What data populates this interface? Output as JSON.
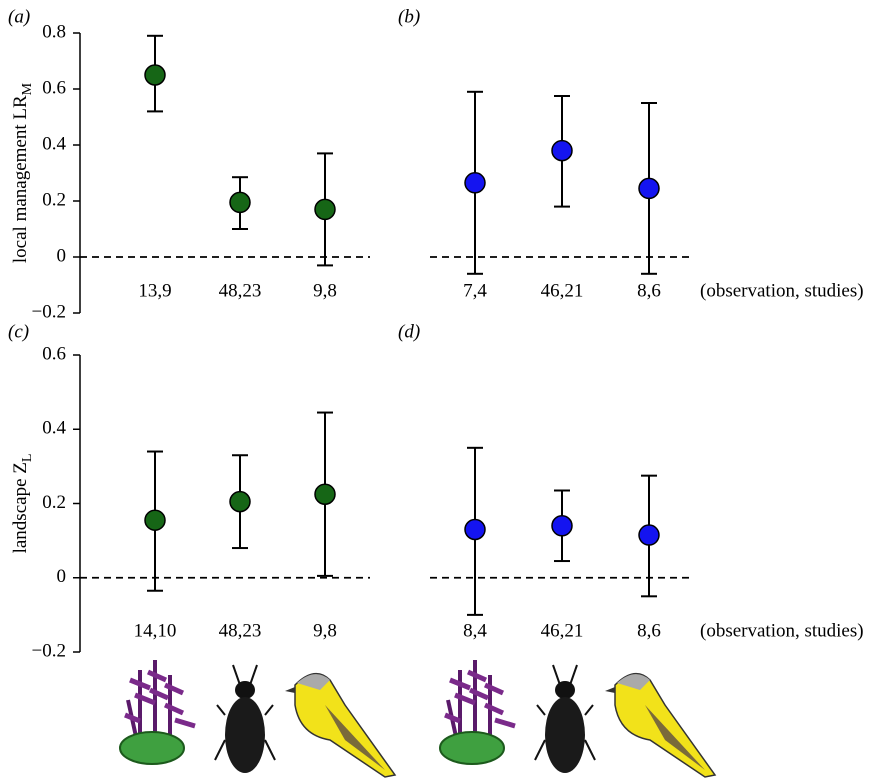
{
  "chart_data": [
    {
      "type": "errorbar",
      "panel_label": "(a)",
      "ylabel": "local management LR",
      "ylabel_sub": "M",
      "categories": [
        "13,9",
        "48,23",
        "9,8"
      ],
      "values": [
        0.65,
        0.195,
        0.17
      ],
      "lower": [
        0.52,
        0.1,
        -0.03
      ],
      "upper": [
        0.79,
        0.285,
        0.37
      ],
      "color": "#166616",
      "ylim": [
        -0.2,
        0.8
      ],
      "yticks": [
        {
          "value": -0.2,
          "label": "−0.2"
        },
        0,
        0.2,
        0.4,
        0.6,
        0.8
      ],
      "zero_line": true
    },
    {
      "type": "errorbar",
      "panel_label": "(b)",
      "note": "(observation, studies)",
      "categories": [
        "7,4",
        "46,21",
        "8,6"
      ],
      "values": [
        0.265,
        0.38,
        0.245
      ],
      "lower": [
        -0.06,
        0.18,
        -0.06
      ],
      "upper": [
        0.59,
        0.575,
        0.55
      ],
      "color": "#1414f0",
      "ylim": [
        -0.2,
        0.8
      ],
      "zero_line": true
    },
    {
      "type": "errorbar",
      "panel_label": "(c)",
      "ylabel": "landscape Z",
      "ylabel_sub": "L",
      "categories": [
        "14,10",
        "48,23",
        "9,8"
      ],
      "values": [
        0.155,
        0.205,
        0.225
      ],
      "lower": [
        -0.035,
        0.08,
        0.005
      ],
      "upper": [
        0.34,
        0.33,
        0.445
      ],
      "color": "#166616",
      "ylim": [
        -0.2,
        0.6
      ],
      "yticks": [
        {
          "value": -0.2,
          "label": "−0.2"
        },
        0,
        0.2,
        0.4,
        0.6
      ],
      "zero_line": true
    },
    {
      "type": "errorbar",
      "panel_label": "(d)",
      "note": "(observation, studies)",
      "categories": [
        "8,4",
        "46,21",
        "8,6"
      ],
      "values": [
        0.13,
        0.14,
        0.115
      ],
      "lower": [
        -0.1,
        0.045,
        -0.05
      ],
      "upper": [
        0.35,
        0.235,
        0.275
      ],
      "color": "#1414f0",
      "ylim": [
        -0.2,
        0.6
      ],
      "zero_line": true
    }
  ]
}
